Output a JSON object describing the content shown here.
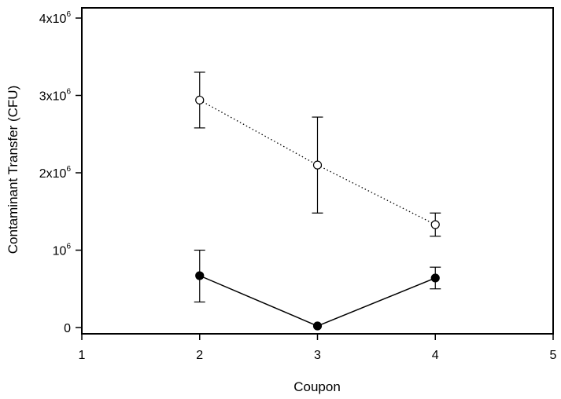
{
  "chart_data": {
    "type": "scatter",
    "xlabel": "Coupon",
    "ylabel": "Contaminant Transfer (CFU)",
    "xlim": [
      1,
      5
    ],
    "ylim": [
      0,
      4000000
    ],
    "x_ticks": [
      {
        "value": 1,
        "label": "1"
      },
      {
        "value": 2,
        "label": "2"
      },
      {
        "value": 3,
        "label": "3"
      },
      {
        "value": 4,
        "label": "4"
      },
      {
        "value": 5,
        "label": "5"
      }
    ],
    "y_ticks": [
      {
        "value": 0,
        "base": "0",
        "exp": ""
      },
      {
        "value": 1000000,
        "base": "10",
        "exp": "6"
      },
      {
        "value": 2000000,
        "base": "2x10",
        "exp": "6"
      },
      {
        "value": 3000000,
        "base": "3x10",
        "exp": "6"
      },
      {
        "value": 4000000,
        "base": "4x10",
        "exp": "6"
      }
    ],
    "grid": false,
    "legend": "none",
    "series": [
      {
        "marker": "open-circle",
        "line_style": "dotted",
        "color": "#000000",
        "points": [
          {
            "x": 2,
            "y": 2940000,
            "err_low": 2580000,
            "err_high": 3300000
          },
          {
            "x": 3,
            "y": 2100000,
            "err_low": 1480000,
            "err_high": 2720000
          },
          {
            "x": 4,
            "y": 1330000,
            "err_low": 1180000,
            "err_high": 1480000
          }
        ]
      },
      {
        "marker": "filled-circle",
        "line_style": "solid",
        "color": "#000000",
        "points": [
          {
            "x": 2,
            "y": 670000,
            "err_low": 330000,
            "err_high": 1000000
          },
          {
            "x": 3,
            "y": 20000,
            "err_low": 20000,
            "err_high": 20000
          },
          {
            "x": 4,
            "y": 640000,
            "err_low": 500000,
            "err_high": 780000
          }
        ]
      }
    ]
  }
}
